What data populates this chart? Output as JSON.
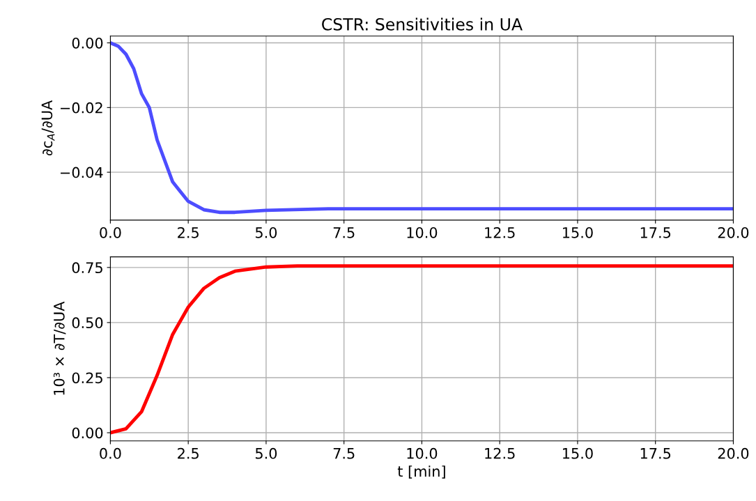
{
  "chart_data": [
    {
      "type": "line",
      "title": "CSTR: Sensitivities in UA",
      "ylabel": "∂c$_{A}$/∂UA",
      "xlim": [
        0,
        20
      ],
      "xticks": [
        {
          "value": 0,
          "label": "0.0"
        },
        {
          "value": 2.5,
          "label": "2.5"
        },
        {
          "value": 5,
          "label": "5.0"
        },
        {
          "value": 7.5,
          "label": "7.5"
        },
        {
          "value": 10,
          "label": "10.0"
        },
        {
          "value": 12.5,
          "label": "12.5"
        },
        {
          "value": 15,
          "label": "15.0"
        },
        {
          "value": 17.5,
          "label": "17.5"
        },
        {
          "value": 20,
          "label": "20.0"
        }
      ],
      "ylim": [
        -0.0548,
        0.0021
      ],
      "yticks": [
        {
          "value": 0,
          "label": "0.00"
        },
        {
          "value": -0.02,
          "label": "−0.02"
        },
        {
          "value": -0.04,
          "label": "−0.04"
        }
      ],
      "grid": true,
      "legend": false,
      "series": [
        {
          "color": "#4d4dff",
          "x": [
            0,
            0.25,
            0.5,
            0.75,
            1,
            1.25,
            1.5,
            2,
            2.5,
            3,
            3.5,
            4,
            5,
            7,
            10,
            15,
            20
          ],
          "values": [
            0,
            -0.001,
            -0.0035,
            -0.008,
            -0.0157,
            -0.02,
            -0.03,
            -0.043,
            -0.049,
            -0.0516,
            -0.0524,
            -0.0524,
            -0.0518,
            -0.0513,
            -0.0513,
            -0.0513,
            -0.0513
          ]
        }
      ]
    },
    {
      "type": "line",
      "ylabel": "10³ × ∂T/∂UA",
      "xlabel": "t [min]",
      "xlim": [
        0,
        20
      ],
      "xticks": [
        {
          "value": 0,
          "label": "0.0"
        },
        {
          "value": 2.5,
          "label": "2.5"
        },
        {
          "value": 5,
          "label": "5.0"
        },
        {
          "value": 7.5,
          "label": "7.5"
        },
        {
          "value": 10,
          "label": "10.0"
        },
        {
          "value": 12.5,
          "label": "12.5"
        },
        {
          "value": 15,
          "label": "15.0"
        },
        {
          "value": 17.5,
          "label": "17.5"
        },
        {
          "value": 20,
          "label": "20.0"
        }
      ],
      "ylim": [
        -0.037,
        0.798
      ],
      "yticks": [
        {
          "value": 0,
          "label": "0.00"
        },
        {
          "value": 0.25,
          "label": "0.25"
        },
        {
          "value": 0.5,
          "label": "0.50"
        },
        {
          "value": 0.75,
          "label": "0.75"
        }
      ],
      "grid": true,
      "legend": false,
      "series": [
        {
          "color": "#ff0000",
          "x": [
            0,
            0.5,
            1,
            1.5,
            2,
            2.5,
            3,
            3.5,
            4,
            5,
            6,
            10,
            15,
            20
          ],
          "values": [
            0,
            0.018,
            0.095,
            0.26,
            0.446,
            0.57,
            0.655,
            0.704,
            0.733,
            0.752,
            0.757,
            0.757,
            0.757,
            0.757
          ]
        }
      ]
    }
  ]
}
